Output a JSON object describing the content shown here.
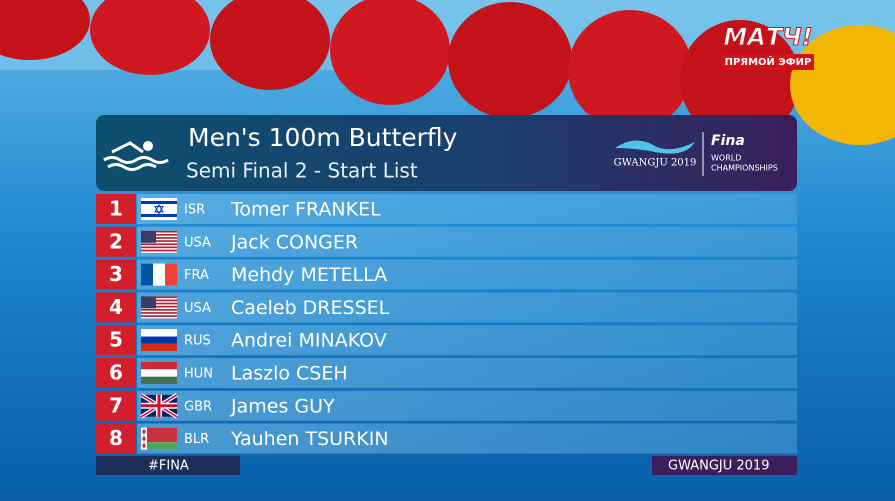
{
  "header": {
    "title": "Men's 100m Butterfly",
    "subtitle": "Semi Final 2 - Start List",
    "logo": {
      "event": "GWANGJU 2019",
      "brand": "Fina",
      "line1": "WORLD",
      "line2": "CHAMPIONSHIPS"
    }
  },
  "channel": {
    "name": "МАТЧ!",
    "status": "ПРЯМОЙ ЭФИР"
  },
  "rows": [
    {
      "lane": 1,
      "code": "ISR",
      "name": "Tomer FRANKEL"
    },
    {
      "lane": 2,
      "code": "USA",
      "name": "Jack CONGER"
    },
    {
      "lane": 3,
      "code": "FRA",
      "name": "Mehdy METELLA"
    },
    {
      "lane": 4,
      "code": "USA",
      "name": "Caeleb DRESSEL"
    },
    {
      "lane": 5,
      "code": "RUS",
      "name": "Andrei MINAKOV"
    },
    {
      "lane": 6,
      "code": "HUN",
      "name": "Laszlo CSEH"
    },
    {
      "lane": 7,
      "code": "GBR",
      "name": "James GUY"
    },
    {
      "lane": 8,
      "code": "BLR",
      "name": "Yauhen TSURKIN"
    }
  ],
  "footer": {
    "left": "#FINA",
    "right": "GWANGJU 2019"
  }
}
